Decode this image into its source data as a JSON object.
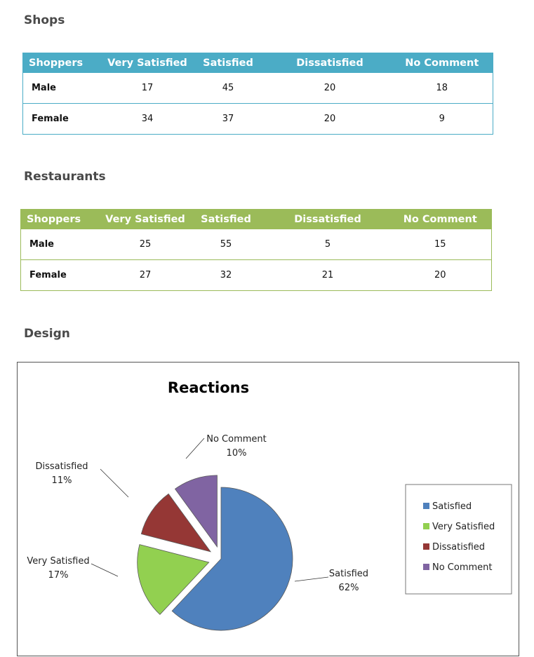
{
  "sections": {
    "shops": "Shops",
    "restaurants": "Restaurants",
    "design": "Design"
  },
  "tables": {
    "headers": [
      "Shoppers",
      "Very Satisfied",
      "Satisfied",
      "Dissatisfied",
      "No Comment"
    ],
    "shops": [
      [
        "Male",
        "17",
        "45",
        "20",
        "18"
      ],
      [
        "Female",
        "34",
        "37",
        "20",
        "9"
      ]
    ],
    "restaurants": [
      [
        "Male",
        "25",
        "55",
        "5",
        "15"
      ],
      [
        "Female",
        "27",
        "32",
        "21",
        "20"
      ]
    ],
    "shops_color": "#4bacc6",
    "restaurants_color": "#9bbb59"
  },
  "chart_data": {
    "type": "pie",
    "title": "Reactions",
    "slices": [
      {
        "label": "Satisfied",
        "value": 62,
        "pct_label": "62%",
        "color": "#4f81bd"
      },
      {
        "label": "Very Satisfied",
        "value": 17,
        "pct_label": "17%",
        "color": "#92d050"
      },
      {
        "label": "Dissatisfied",
        "value": 11,
        "pct_label": "11%",
        "color": "#953735"
      },
      {
        "label": "No Comment",
        "value": 10,
        "pct_label": "10%",
        "color": "#8064a2"
      }
    ],
    "legend": [
      "Satisfied",
      "Very Satisfied",
      "Dissatisfied",
      "No Comment"
    ],
    "legend_position": "right",
    "exploded": true
  }
}
